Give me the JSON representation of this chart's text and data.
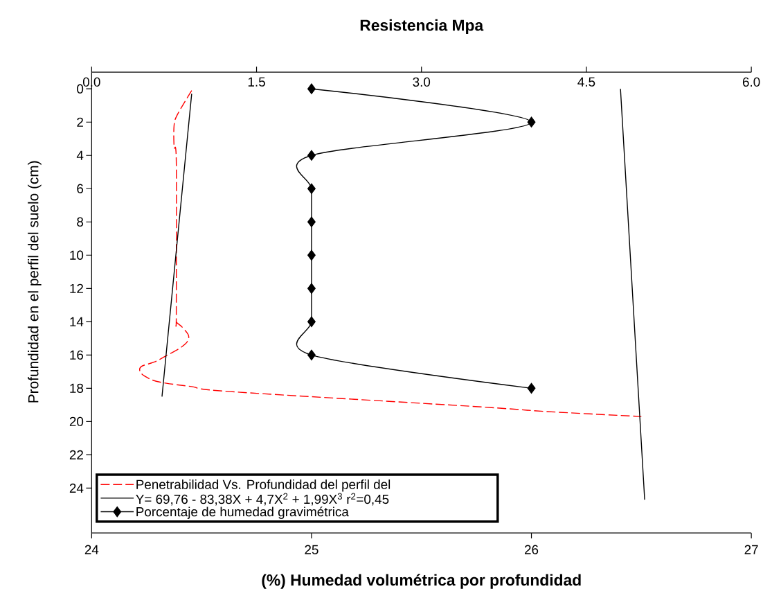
{
  "chart_data": {
    "type": "line",
    "x2label": "Resistencia Mpa",
    "xlabel": "(%) Humedad volumétrica por profundidad",
    "ylabel": "Profundidad en el perfil del suelo (cm)",
    "xlim": [
      24,
      27
    ],
    "xticks": [
      24,
      25,
      26,
      27
    ],
    "x2lim": [
      0,
      6
    ],
    "x2ticks": [
      {
        "value": 0,
        "label": "0.0"
      },
      {
        "value": 1.5,
        "label": "1.5"
      },
      {
        "value": 3,
        "label": "3.0"
      },
      {
        "value": 4.5,
        "label": "4.5"
      },
      {
        "value": 6,
        "label": "6.0"
      }
    ],
    "ylim": [
      26.7,
      -1
    ],
    "yticks": [
      0,
      2,
      4,
      6,
      8,
      10,
      12,
      14,
      16,
      18,
      20,
      22,
      24
    ],
    "legend": "bottom left",
    "series": [
      {
        "name": "Penetrabilidad Vs. Profundidad del perfil del",
        "color": "#ff0000",
        "axis": "x2",
        "line_style": "dashed",
        "marker": "none",
        "x": [
          0.91,
          0.78,
          0.75,
          0.75,
          0.77,
          0.77,
          0.77,
          0.82,
          0.88,
          0.87,
          0.8,
          0.69,
          0.58,
          0.45,
          0.45,
          0.55,
          0.68,
          0.91,
          1.26,
          3.49,
          4.14,
          5.0
        ],
        "values": [
          0.1,
          1.55,
          2.2,
          3.5,
          4.4,
          13.5,
          14,
          14.3,
          14.8,
          15.2,
          15.6,
          16,
          16.4,
          16.7,
          17.1,
          17.5,
          17.7,
          17.9,
          18.2,
          19.1,
          19.4,
          19.7
        ]
      },
      {
        "name": "Y= 69,76 - 83,38X + 4,7X$^{2}$ + 1,99X$^{3}$ r$^{2}$=0,45",
        "color": "#000000",
        "axis": "x2",
        "line_style": "solid",
        "marker": "none",
        "x": [
          0.91,
          0.64,
          null,
          4.81,
          5.03
        ],
        "values": [
          0.3,
          18.5,
          null,
          0,
          24.7
        ]
      },
      {
        "name": "Porcentaje de humedad gravimétrica",
        "color": "#000000",
        "line_style": "solid",
        "marker": "diamond",
        "x": [
          25,
          26,
          25,
          25,
          25,
          25,
          25,
          25,
          25,
          26
        ],
        "values": [
          0,
          2,
          4,
          6,
          8,
          10,
          12,
          14,
          16,
          18
        ]
      }
    ]
  }
}
